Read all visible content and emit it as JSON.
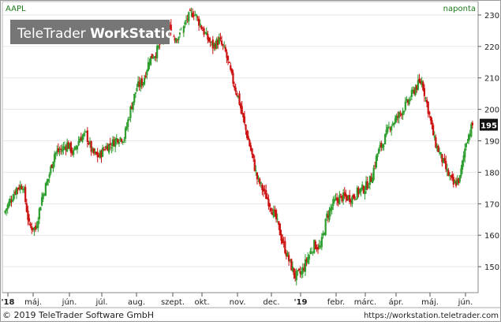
{
  "window": {
    "symbol": "AAPL",
    "interval": "naponta",
    "watermark_brand": "TeleTrader",
    "watermark_product": "WorkStation",
    "footer_copyright": "© 2019 TeleTrader Software GmbH",
    "footer_url": "https://workstation.teletrader.com"
  },
  "colors": {
    "up": "#2e9e2e",
    "down": "#cc1111",
    "symbol_text": "#1a7a1a",
    "price_box": "#111111",
    "border": "#888888",
    "grid": "#e6e6e6"
  },
  "chart_data": {
    "type": "candlestick",
    "ylim": [
      142,
      234
    ],
    "y_ticks": [
      150,
      160,
      170,
      180,
      190,
      200,
      210,
      220,
      230
    ],
    "x_ticks": [
      "'18",
      "máj.",
      "jún.",
      "júl.",
      "aug.",
      "szept.",
      "okt.",
      "nov.",
      "dec.",
      "'19",
      "febr.",
      "márc.",
      "ápr.",
      "máj.",
      "jún."
    ],
    "last_price": "195",
    "grid": true,
    "weekly_closes": [
      167,
      171,
      175,
      176,
      163,
      162,
      172,
      178,
      186,
      187,
      189,
      186,
      191,
      192,
      186,
      185,
      188,
      189,
      191,
      191,
      200,
      207,
      209,
      216,
      218,
      222,
      226,
      223,
      224,
      229,
      231,
      227,
      223,
      220,
      222,
      218,
      210,
      204,
      195,
      187,
      178,
      174,
      170,
      165,
      158,
      152,
      147,
      148,
      153,
      157,
      156,
      166,
      170,
      172,
      172,
      172,
      174,
      175,
      178,
      186,
      190,
      195,
      197,
      200,
      203,
      207,
      209,
      200,
      190,
      185,
      180,
      176,
      178,
      190,
      195
    ]
  }
}
